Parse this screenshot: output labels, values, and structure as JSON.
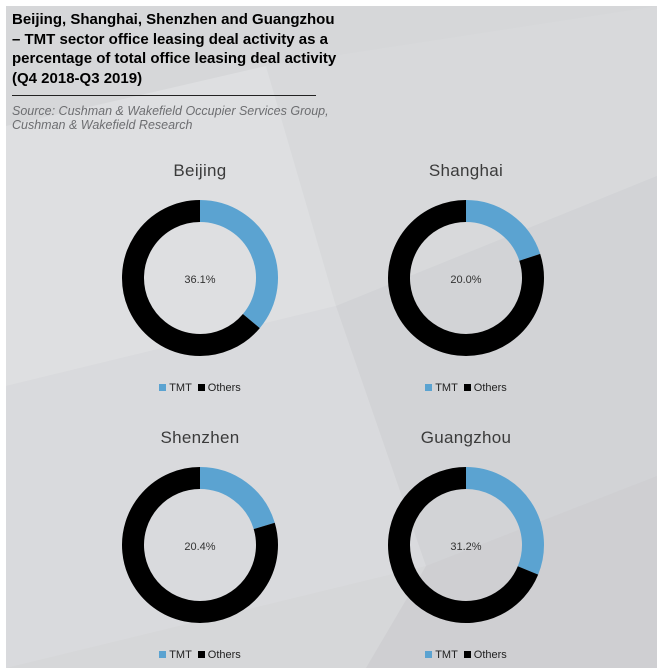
{
  "title": "Beijing, Shanghai, Shenzhen and Guangzhou – TMT sector office leasing deal activity as a percentage of total office leasing deal activity (Q4 2018-Q3 2019)",
  "source": "Source: Cushman & Wakefield Occupier Services Group, Cushman & Wakefield Research",
  "colors": {
    "tmt": "#5ba3d1",
    "others": "#000000"
  },
  "chart_data": [
    {
      "type": "pie",
      "title": "Beijing",
      "categories": [
        "TMT",
        "Others"
      ],
      "values": [
        36.1,
        63.9
      ],
      "center_label": "36.1%",
      "legend": "bottom"
    },
    {
      "type": "pie",
      "title": "Shanghai",
      "categories": [
        "TMT",
        "Others"
      ],
      "values": [
        20.0,
        80.0
      ],
      "center_label": "20.0%",
      "legend": "bottom"
    },
    {
      "type": "pie",
      "title": "Shenzhen",
      "categories": [
        "TMT",
        "Others"
      ],
      "values": [
        20.4,
        79.6
      ],
      "center_label": "20.4%",
      "legend": "bottom"
    },
    {
      "type": "pie",
      "title": "Guangzhou",
      "categories": [
        "TMT",
        "Others"
      ],
      "values": [
        31.2,
        68.8
      ],
      "center_label": "31.2%",
      "legend": "bottom"
    }
  ]
}
